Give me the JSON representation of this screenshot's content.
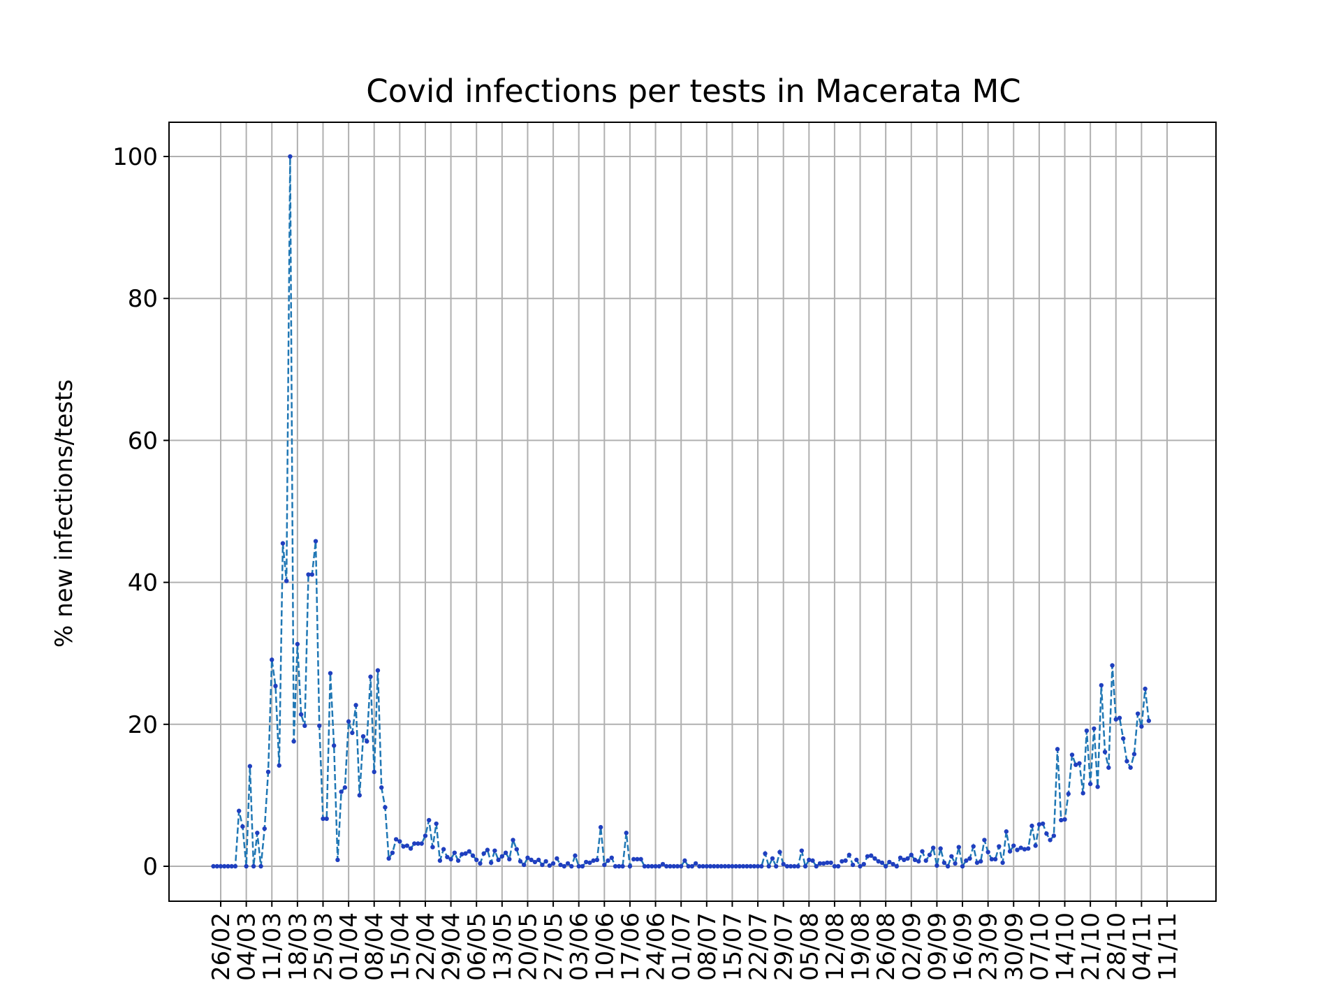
{
  "chart_data": {
    "type": "line",
    "title": "Covid infections per tests in Macerata MC",
    "xlabel": "",
    "ylabel": "% new infections/tests",
    "ylim": [
      -5,
      105
    ],
    "yticks": [
      0,
      20,
      40,
      60,
      80,
      100
    ],
    "grid": true,
    "x_tick_labels": [
      "26/02",
      "04/03",
      "11/03",
      "18/03",
      "25/03",
      "01/04",
      "08/04",
      "15/04",
      "22/04",
      "29/04",
      "06/05",
      "13/05",
      "20/05",
      "27/05",
      "03/06",
      "10/06",
      "17/06",
      "24/06",
      "01/07",
      "08/07",
      "15/07",
      "22/07",
      "29/07",
      "05/08",
      "12/08",
      "19/08",
      "26/08",
      "02/09",
      "09/09",
      "16/09",
      "23/09",
      "30/09",
      "07/10",
      "14/10",
      "21/10",
      "28/10",
      "04/11",
      "11/11"
    ],
    "x_start": "24/02",
    "series": [
      {
        "name": "",
        "color": "#1f77b4",
        "marker_color": "#1f3fbf",
        "values": [
          0,
          0,
          0,
          0,
          0,
          0,
          0,
          7.8,
          5.6,
          0,
          14.1,
          0,
          4.7,
          0,
          5.3,
          13.3,
          29.1,
          25.4,
          14.2,
          45.5,
          40.2,
          100,
          17.6,
          31.3,
          21.4,
          19.8,
          41.1,
          41.1,
          45.8,
          19.8,
          6.7,
          6.7,
          27.2,
          17.0,
          0.9,
          10.5,
          11.1,
          20.4,
          18.8,
          22.7,
          10.0,
          18.3,
          17.6,
          26.7,
          13.3,
          27.6,
          11.1,
          8.3,
          1.1,
          1.9,
          3.8,
          3.5,
          2.8,
          2.9,
          2.5,
          3.2,
          3.2,
          3.2,
          4.3,
          6.5,
          2.7,
          6.0,
          0.8,
          2.4,
          1.3,
          1.0,
          1.9,
          0.8,
          1.7,
          1.8,
          2.1,
          1.5,
          0.9,
          0.4,
          1.8,
          2.3,
          0.5,
          2.2,
          0.9,
          1.4,
          1.9,
          1.0,
          3.7,
          2.4,
          0.7,
          0.2,
          1.2,
          0.9,
          0.6,
          0.9,
          0.2,
          0.7,
          0.1,
          0.4,
          1.1,
          0.2,
          0,
          0.4,
          0,
          1.5,
          0,
          0,
          0.6,
          0.5,
          0.8,
          0.9,
          5.5,
          0.2,
          0.8,
          1.2,
          0,
          0,
          0,
          4.7,
          0,
          1.0,
          1.0,
          1.0,
          0,
          0,
          0,
          0,
          0,
          0.3,
          0,
          0,
          0,
          0,
          0,
          0.8,
          0,
          0,
          0.4,
          0,
          0,
          0,
          0,
          0,
          0,
          0,
          0,
          0,
          0,
          0,
          0,
          0,
          0,
          0,
          0,
          0,
          0,
          1.8,
          0,
          1.1,
          0,
          2.0,
          0.3,
          0,
          0,
          0,
          0,
          2.2,
          0,
          0.9,
          0.8,
          0,
          0.4,
          0.4,
          0.5,
          0.5,
          0,
          0,
          0.7,
          0.8,
          1.6,
          0.2,
          0.9,
          0,
          0.3,
          1.4,
          1.5,
          1.1,
          0.7,
          0.5,
          0,
          0.6,
          0.3,
          0,
          1.2,
          0.9,
          1.1,
          1.6,
          0.9,
          0.7,
          2.1,
          0.8,
          1.6,
          2.6,
          0.1,
          2.5,
          0.5,
          0,
          1.4,
          0.4,
          2.7,
          0,
          0.8,
          1.1,
          2.8,
          0.5,
          0.7,
          3.7,
          2.0,
          1.0,
          1.0,
          2.8,
          0.5,
          4.9,
          2.1,
          2.9,
          2.3,
          2.6,
          2.4,
          2.5,
          5.7,
          2.9,
          5.9,
          6.0,
          4.6,
          3.7,
          4.3,
          16.5,
          6.5,
          6.6,
          10.2,
          15.7,
          14.3,
          14.5,
          10.3,
          19.1,
          11.6,
          19.4,
          11.2,
          25.5,
          16.1,
          13.9,
          28.3,
          20.7,
          20.9,
          18.0,
          14.8,
          13.9,
          15.8,
          21.5,
          19.7,
          25.0,
          20.5
        ]
      }
    ]
  }
}
